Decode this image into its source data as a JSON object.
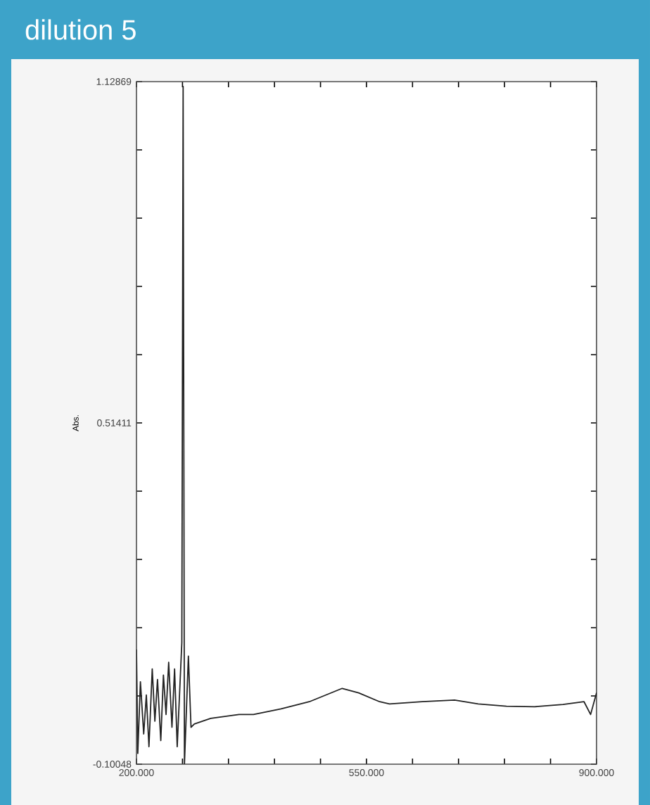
{
  "chart_data": {
    "type": "line",
    "title": "dilution 5",
    "ylabel": "Abs.",
    "color": "#222222",
    "x": [
      200,
      202,
      206,
      211,
      215,
      219,
      224,
      228,
      232,
      237,
      241,
      245,
      249,
      254,
      258,
      262,
      269,
      271,
      273,
      279,
      283,
      288,
      313,
      356,
      378,
      420,
      463,
      513,
      538,
      570,
      585,
      635,
      684,
      720,
      763,
      806,
      849,
      881,
      891,
      900
    ],
    "values": [
      0.106,
      -0.081,
      0.048,
      -0.046,
      0.024,
      -0.069,
      0.071,
      -0.023,
      0.052,
      -0.058,
      0.06,
      -0.011,
      0.083,
      -0.034,
      0.071,
      -0.069,
      0.118,
      1.12,
      -0.1,
      0.094,
      -0.034,
      -0.028,
      -0.018,
      -0.011,
      -0.011,
      -0.001,
      0.012,
      0.036,
      0.028,
      0.012,
      0.008,
      0.012,
      0.015,
      0.008,
      0.004,
      0.003,
      0.007,
      0.012,
      -0.011,
      0.028
    ],
    "xlim": [
      200,
      900
    ],
    "ylim": [
      -0.10048,
      1.12869
    ],
    "xticks": [
      {
        "value": 200,
        "label": "200.000"
      },
      {
        "value": 270,
        "label": null
      },
      {
        "value": 340,
        "label": null
      },
      {
        "value": 410,
        "label": null
      },
      {
        "value": 480,
        "label": null
      },
      {
        "value": 550,
        "label": "550.000"
      },
      {
        "value": 620,
        "label": null
      },
      {
        "value": 690,
        "label": null
      },
      {
        "value": 760,
        "label": null
      },
      {
        "value": 830,
        "label": null
      },
      {
        "value": 900,
        "label": "900.000"
      }
    ],
    "yticks": [
      -0.10048,
      {
        "value": 0.022437,
        "label": null
      },
      {
        "value": 0.145354,
        "label": null
      },
      {
        "value": 0.268271,
        "label": null
      },
      {
        "value": 0.391188,
        "label": null
      },
      0.51411,
      {
        "value": 0.637022,
        "label": null
      },
      {
        "value": 0.759939,
        "label": null
      },
      {
        "value": 0.882856,
        "label": null
      },
      {
        "value": 1.005773,
        "label": null
      },
      1.12869
    ]
  }
}
